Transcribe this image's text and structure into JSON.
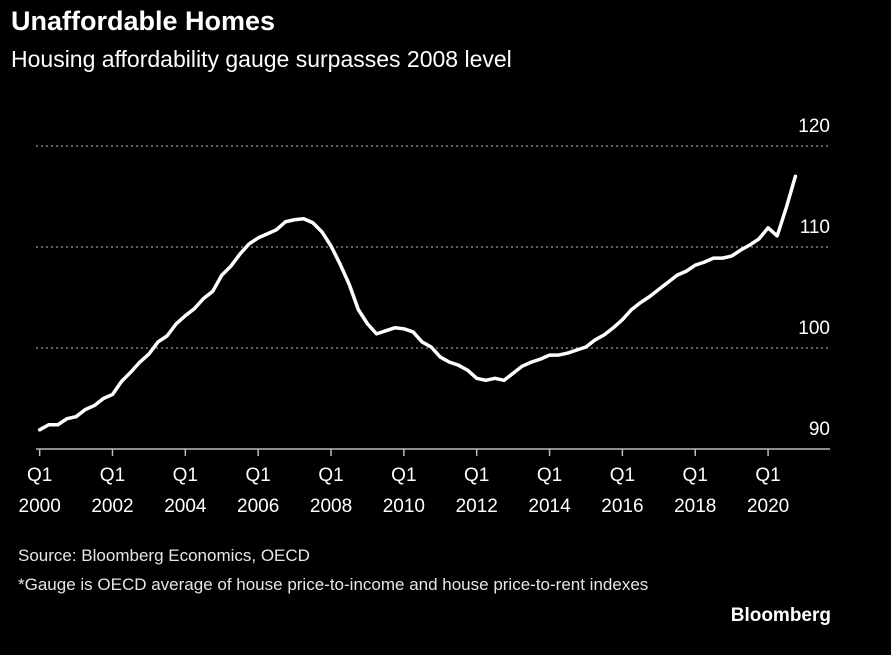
{
  "chart_data": {
    "type": "line",
    "title": "Unaffordable Homes",
    "subtitle": "Housing affordability gauge surpasses 2008 level",
    "source": "Source: Bloomberg Economics, OECD",
    "note": "*Gauge is OECD average of house price-to-income and house price-to-rent indexes",
    "brand": "Bloomberg",
    "x": [
      2000,
      2000.25,
      2000.5,
      2000.75,
      2001,
      2001.25,
      2001.5,
      2001.75,
      2002,
      2002.25,
      2002.5,
      2002.75,
      2003,
      2003.25,
      2003.5,
      2003.75,
      2004,
      2004.25,
      2004.5,
      2004.75,
      2005,
      2005.25,
      2005.5,
      2005.75,
      2006,
      2006.25,
      2006.5,
      2006.75,
      2007,
      2007.25,
      2007.5,
      2007.75,
      2008,
      2008.25,
      2008.5,
      2008.75,
      2009,
      2009.25,
      2009.5,
      2009.75,
      2010,
      2010.25,
      2010.5,
      2010.75,
      2011,
      2011.25,
      2011.5,
      2011.75,
      2012,
      2012.25,
      2012.5,
      2012.75,
      2013,
      2013.25,
      2013.5,
      2013.75,
      2014,
      2014.25,
      2014.5,
      2014.75,
      2015,
      2015.25,
      2015.5,
      2015.75,
      2016,
      2016.25,
      2016.5,
      2016.75,
      2017,
      2017.25,
      2017.5,
      2017.75,
      2018,
      2018.25,
      2018.5,
      2018.75,
      2019,
      2019.25,
      2019.5,
      2019.75,
      2020,
      2020.25,
      2020.5,
      2020.75
    ],
    "series": [
      {
        "color": "#ffffff",
        "values": [
          91.9,
          92.4,
          92.4,
          93.0,
          93.2,
          93.9,
          94.3,
          95.0,
          95.4,
          96.7,
          97.6,
          98.6,
          99.4,
          100.6,
          101.2,
          102.4,
          103.2,
          103.9,
          104.9,
          105.6,
          107.2,
          108.1,
          109.3,
          110.3,
          110.9,
          111.3,
          111.7,
          112.5,
          112.7,
          112.8,
          112.4,
          111.5,
          110.1,
          108.3,
          106.3,
          103.8,
          102.4,
          101.4,
          101.7,
          102.0,
          101.9,
          101.6,
          100.6,
          100.1,
          99.1,
          98.6,
          98.3,
          97.8,
          97.0,
          96.8,
          97.0,
          96.8,
          97.5,
          98.2,
          98.6,
          98.9,
          99.3,
          99.3,
          99.5,
          99.8,
          100.1,
          100.8,
          101.3,
          102.0,
          102.8,
          103.8,
          104.5,
          105.1,
          105.8,
          106.5,
          107.2,
          107.6,
          108.2,
          108.5,
          108.9,
          108.9,
          109.1,
          109.7,
          110.2,
          110.8,
          111.9,
          111.1,
          113.9,
          117.0
        ]
      }
    ],
    "xlim": [
      1999.9,
      2021.7
    ],
    "xticks": [
      {
        "value": 2000,
        "label": [
          "Q1",
          "2000"
        ]
      },
      {
        "value": 2002,
        "label": [
          "Q1",
          "2002"
        ]
      },
      {
        "value": 2004,
        "label": [
          "Q1",
          "2004"
        ]
      },
      {
        "value": 2006,
        "label": [
          "Q1",
          "2006"
        ]
      },
      {
        "value": 2008,
        "label": [
          "Q1",
          "2008"
        ]
      },
      {
        "value": 2010,
        "label": [
          "Q1",
          "2010"
        ]
      },
      {
        "value": 2012,
        "label": [
          "Q1",
          "2012"
        ]
      },
      {
        "value": 2014,
        "label": [
          "Q1",
          "2014"
        ]
      },
      {
        "value": 2016,
        "label": [
          "Q1",
          "2016"
        ]
      },
      {
        "value": 2018,
        "label": [
          "Q1",
          "2018"
        ]
      },
      {
        "value": 2020,
        "label": [
          "Q1",
          "2020"
        ]
      }
    ],
    "ylim": [
      90,
      120
    ],
    "yticks": [
      90,
      100,
      110,
      120
    ],
    "grid": true
  }
}
